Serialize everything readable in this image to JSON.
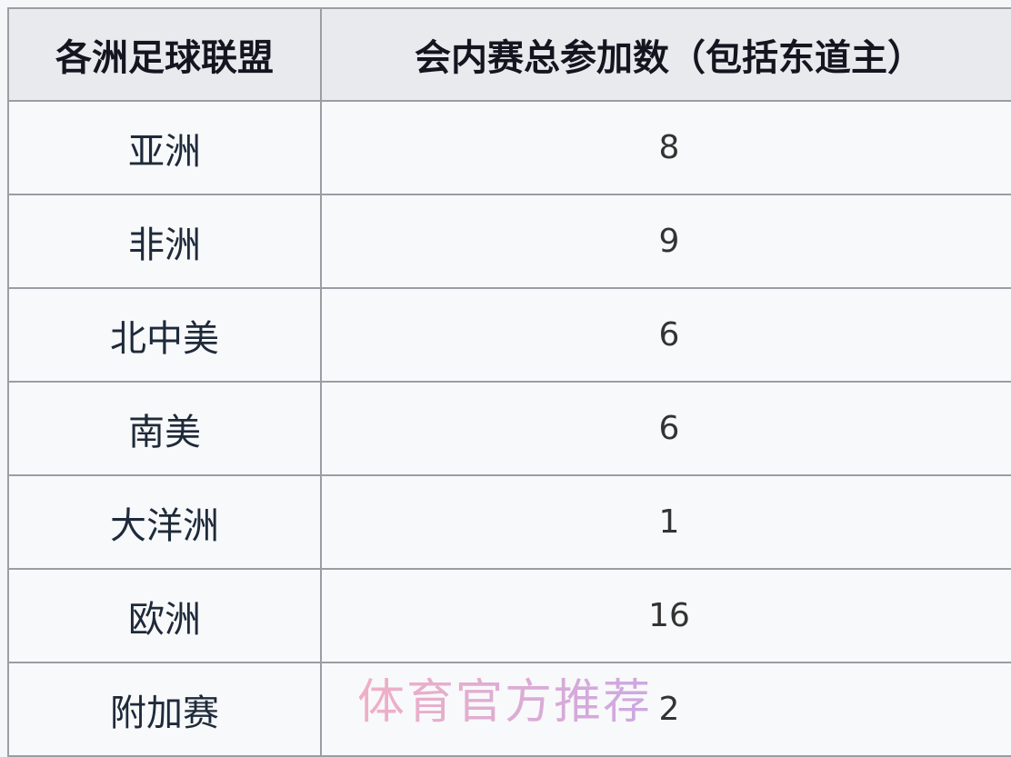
{
  "table": {
    "headers": [
      "各洲足球联盟",
      "会内赛总参加数（包括东道主）"
    ],
    "rows": [
      [
        "亚洲",
        "8"
      ],
      [
        "非洲",
        "9"
      ],
      [
        "北中美",
        "6"
      ],
      [
        "南美",
        "6"
      ],
      [
        "大洋洲",
        "1"
      ],
      [
        "欧洲",
        "16"
      ],
      [
        "附加赛",
        "2"
      ]
    ]
  },
  "watermark": "体育官方推荐",
  "colors": {
    "header_bg": "#e9eaee",
    "cell_bg": "#f8f9fa",
    "border": "#9a9ea4"
  }
}
